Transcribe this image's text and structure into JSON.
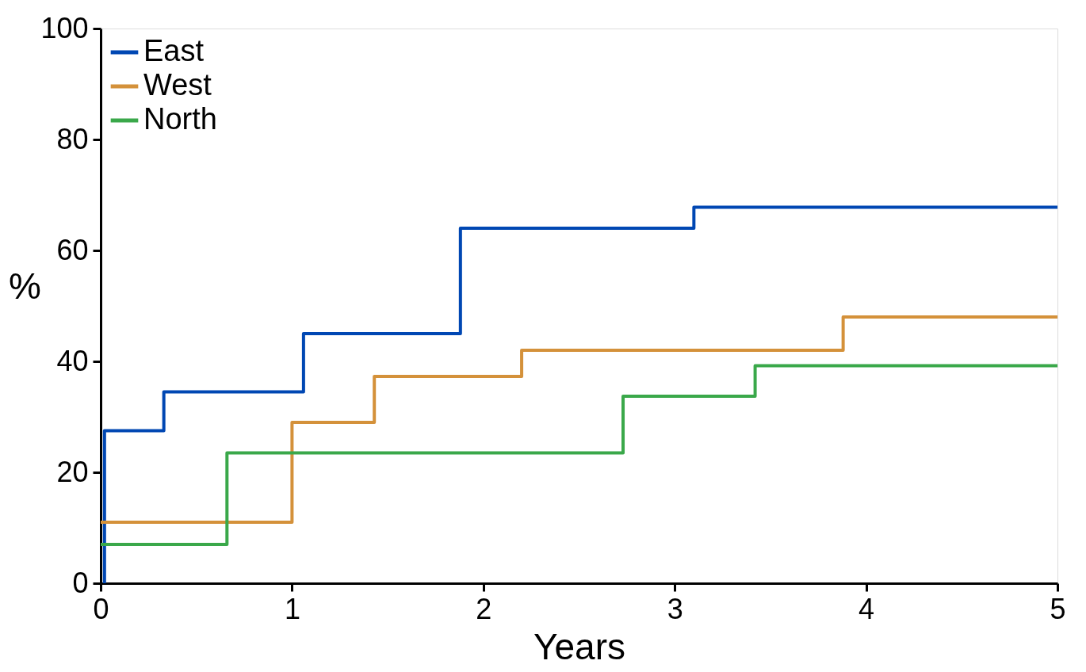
{
  "chart_data": {
    "type": "step",
    "xlabel": "Years",
    "ylabel": "%",
    "xlim": [
      0,
      5
    ],
    "ylim": [
      0,
      100
    ],
    "xticks": [
      0,
      1,
      2,
      3,
      4,
      5
    ],
    "yticks": [
      0,
      20,
      40,
      60,
      80,
      100
    ],
    "grid": false,
    "legend": "top left",
    "line_style": "solid",
    "series": [
      {
        "name": "East",
        "color": "#0047b3",
        "x": [
          0.02,
          0.02,
          0.33,
          1.06,
          1.88,
          3.1,
          5
        ],
        "values": [
          0,
          27.5,
          34.5,
          45,
          64,
          67.8,
          67.8
        ]
      },
      {
        "name": "West",
        "color": "#d4913a",
        "x": [
          0,
          1.0,
          1.43,
          2.2,
          3.88,
          5
        ],
        "values": [
          11,
          29,
          37.3,
          42,
          48,
          48
        ]
      },
      {
        "name": "North",
        "color": "#3aa84a",
        "x": [
          0,
          0.66,
          2.73,
          3.42,
          5
        ],
        "values": [
          7,
          23.5,
          33.7,
          39.2,
          39.2
        ]
      }
    ]
  }
}
